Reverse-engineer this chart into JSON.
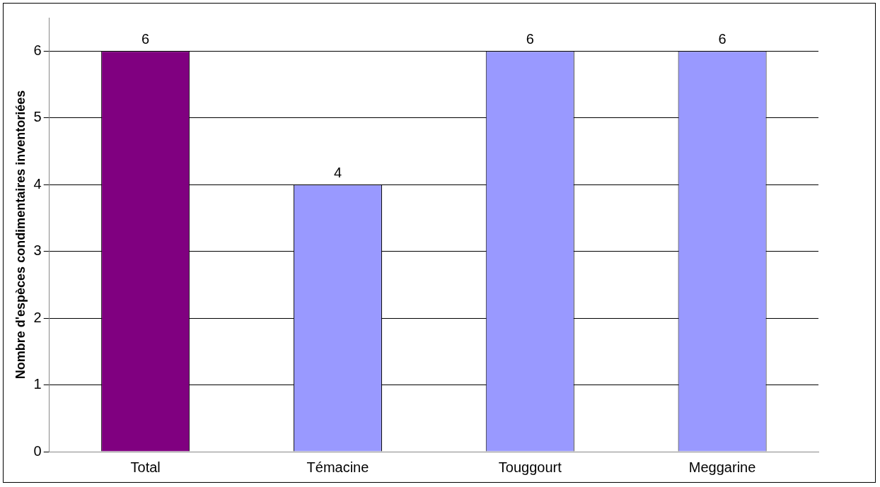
{
  "chart_data": {
    "type": "bar",
    "ylabel": "Nombre d'espèces condimentaires inventoriées",
    "categories": [
      "Total",
      "Témacine",
      "Touggourt",
      "Meggarine"
    ],
    "values": [
      6,
      4,
      6,
      6
    ],
    "colors": [
      "#800080",
      "#9999ff",
      "#9999ff",
      "#9999ff"
    ],
    "ylim": [
      0,
      6.5
    ],
    "yticks": [
      0,
      1,
      2,
      3,
      4,
      5,
      6
    ],
    "grid": "y",
    "data_labels": true,
    "legend": false
  }
}
